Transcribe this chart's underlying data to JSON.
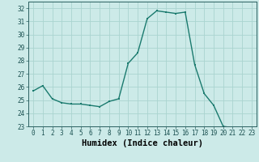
{
  "x": [
    0,
    1,
    2,
    3,
    4,
    5,
    6,
    7,
    8,
    9,
    10,
    11,
    12,
    13,
    14,
    15,
    16,
    17,
    18,
    19,
    20,
    21,
    22,
    23
  ],
  "y": [
    25.7,
    26.1,
    25.1,
    24.8,
    24.7,
    24.7,
    24.6,
    24.5,
    24.9,
    25.1,
    27.8,
    28.6,
    31.2,
    31.8,
    31.7,
    31.6,
    31.7,
    27.7,
    25.5,
    24.6,
    23.0,
    22.9,
    22.8,
    22.7
  ],
  "line_color": "#1a7a6e",
  "marker": "s",
  "markersize": 2.0,
  "linewidth": 1.0,
  "bg_color": "#cceae8",
  "grid_color": "#aad4d0",
  "xlabel": "Humidex (Indice chaleur)",
  "xlim": [
    -0.5,
    23.5
  ],
  "ylim": [
    23,
    32.5
  ],
  "yticks": [
    23,
    24,
    25,
    26,
    27,
    28,
    29,
    30,
    31,
    32
  ],
  "xticks": [
    0,
    1,
    2,
    3,
    4,
    5,
    6,
    7,
    8,
    9,
    10,
    11,
    12,
    13,
    14,
    15,
    16,
    17,
    18,
    19,
    20,
    21,
    22,
    23
  ],
  "tick_fontsize": 5.5,
  "xlabel_fontsize": 7.5
}
